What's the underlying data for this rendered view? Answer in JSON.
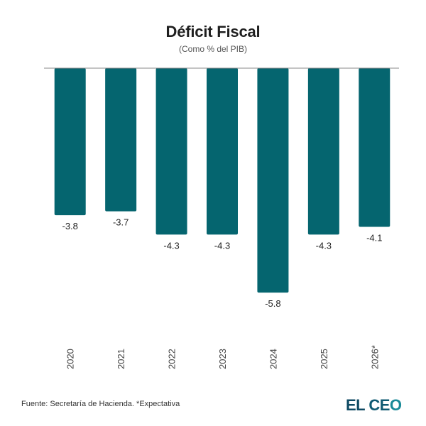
{
  "header": {
    "title": "Déficit Fiscal",
    "subtitle": "(Como % del PIB)"
  },
  "footer": {
    "source": "Fuente: Secretaría de Hacienda. *Expectativa",
    "logo_part1": "EL",
    "logo_part2": "CE",
    "logo_part3": "O"
  },
  "colors": {
    "bar": "#05656f",
    "baseline": "#888888",
    "label": "#222222",
    "tick": "#444444"
  },
  "chart_data": {
    "type": "bar",
    "title": "Déficit Fiscal",
    "subtitle": "(Como % del PIB)",
    "xlabel": "",
    "ylabel": "",
    "categories": [
      "2020",
      "2021",
      "2022",
      "2023",
      "2024",
      "2025",
      "2026*"
    ],
    "values": [
      -3.8,
      -3.7,
      -4.3,
      -4.3,
      -5.8,
      -4.3,
      -4.1
    ],
    "data_labels": [
      "-3.8",
      "-3.7",
      "-4.3",
      "-4.3",
      "-5.8",
      "-4.3",
      "-4.1"
    ],
    "ylim": [
      -7,
      0
    ],
    "grid": false,
    "legend": "none",
    "annotation": "*Expectativa"
  }
}
